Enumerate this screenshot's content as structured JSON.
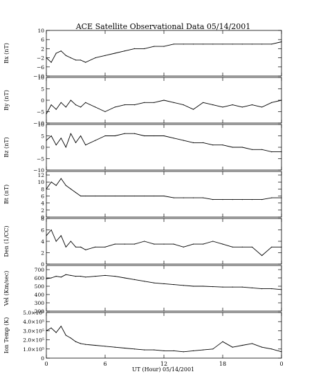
{
  "chart_data": {
    "type": "line",
    "title": "ACE Satellite Observational Data   05/14/2001",
    "xlabel": "UT (Hour)   05/14/2001",
    "x_ticks": [
      "0",
      "6",
      "12",
      "18",
      "0"
    ],
    "x_range": [
      0,
      24
    ],
    "line_color": "#000000",
    "panels": [
      {
        "ylabel": "Bx (nT)",
        "ylim": [
          -10,
          10
        ],
        "yticks": [
          -10,
          -6,
          -2,
          2,
          6,
          10
        ],
        "ytick_labels": [
          "−10",
          "−6",
          "−2",
          "2",
          "6",
          "10"
        ],
        "x": [
          0,
          0.5,
          1,
          1.5,
          2,
          2.5,
          3,
          3.5,
          4,
          5,
          6,
          7,
          8,
          9,
          10,
          11,
          12,
          13,
          14,
          15,
          16,
          17,
          18,
          19,
          20,
          21,
          22,
          23,
          24
        ],
        "values": [
          -2,
          -4,
          0,
          1,
          -1,
          -2,
          -3,
          -3,
          -4,
          -2,
          -1,
          0,
          1,
          2,
          2,
          3,
          3,
          4,
          4,
          4,
          4,
          4,
          4,
          4,
          4,
          4,
          4,
          4,
          5
        ]
      },
      {
        "ylabel": "By (nT)",
        "ylim": [
          -10,
          10
        ],
        "yticks": [
          -10,
          -5,
          0,
          5,
          10
        ],
        "ytick_labels": [
          "−10",
          "−5",
          "0",
          "5",
          "10"
        ],
        "x": [
          0,
          0.5,
          1,
          1.5,
          2,
          2.5,
          3,
          3.5,
          4,
          5,
          6,
          7,
          8,
          9,
          10,
          11,
          12,
          13,
          14,
          15,
          16,
          17,
          18,
          19,
          20,
          21,
          22,
          23,
          24
        ],
        "values": [
          -6,
          -2,
          -4,
          -1,
          -3,
          0,
          -2,
          -3,
          -1,
          -3,
          -5,
          -3,
          -2,
          -2,
          -1,
          -1,
          0,
          -1,
          -2,
          -4,
          -1,
          -2,
          -3,
          -2,
          -3,
          -2,
          -3,
          -1,
          0
        ]
      },
      {
        "ylabel": "Bz (nT)",
        "ylim": [
          -10,
          10
        ],
        "yticks": [
          -10,
          -5,
          0,
          5,
          10
        ],
        "ytick_labels": [
          "−10",
          "−5",
          "0",
          "5",
          "10"
        ],
        "x": [
          0,
          0.5,
          1,
          1.5,
          2,
          2.5,
          3,
          3.5,
          4,
          5,
          6,
          7,
          8,
          9,
          10,
          11,
          12,
          13,
          14,
          15,
          16,
          17,
          18,
          19,
          20,
          21,
          22,
          23,
          24
        ],
        "values": [
          3,
          5,
          1,
          4,
          0,
          6,
          2,
          5,
          1,
          3,
          5,
          5,
          6,
          6,
          5,
          5,
          5,
          4,
          3,
          2,
          2,
          1,
          1,
          0,
          0,
          -1,
          -1,
          -2,
          -2
        ]
      },
      {
        "ylabel": "Bt (nT)",
        "ylim": [
          0,
          13
        ],
        "yticks": [
          0,
          2,
          4,
          6,
          8,
          10,
          12
        ],
        "ytick_labels": [
          "0",
          "2",
          "4",
          "6",
          "8",
          "10",
          "12"
        ],
        "x": [
          0,
          0.5,
          1,
          1.5,
          2,
          2.5,
          3,
          3.5,
          4,
          5,
          6,
          7,
          8,
          9,
          10,
          11,
          12,
          13,
          14,
          15,
          16,
          17,
          18,
          19,
          20,
          21,
          22,
          23,
          24
        ],
        "values": [
          8,
          10,
          9,
          11,
          9,
          8,
          7,
          6,
          6,
          6,
          6,
          6,
          6,
          6,
          6,
          6,
          6,
          5.5,
          5.5,
          5.5,
          5.5,
          5,
          5,
          5,
          5,
          5,
          5,
          5.5,
          5.5
        ]
      },
      {
        "ylabel": "Den (1/CC)",
        "ylim": [
          0,
          8
        ],
        "yticks": [
          0,
          2,
          4,
          6,
          8
        ],
        "ytick_labels": [
          "0",
          "2",
          "4",
          "6",
          "8"
        ],
        "x": [
          0,
          0.5,
          1,
          1.5,
          2,
          2.5,
          3,
          3.5,
          4,
          5,
          6,
          7,
          8,
          9,
          10,
          11,
          12,
          13,
          14,
          15,
          16,
          17,
          18,
          19,
          20,
          21,
          22,
          23,
          24
        ],
        "values": [
          5,
          6,
          4,
          5,
          3,
          4,
          3,
          3,
          2.5,
          3,
          3,
          3.5,
          3.5,
          3.5,
          4,
          3.5,
          3.5,
          3.5,
          3,
          3.5,
          3.5,
          4,
          3.5,
          3,
          3,
          3,
          1.5,
          3,
          3
        ]
      },
      {
        "ylabel": "Vel (Km/sec)",
        "ylim": [
          200,
          750
        ],
        "yticks": [
          200,
          300,
          400,
          500,
          600,
          700
        ],
        "ytick_labels": [
          "200",
          "300",
          "400",
          "500",
          "600",
          "700"
        ],
        "x": [
          0,
          0.5,
          1,
          1.5,
          2,
          2.5,
          3,
          3.5,
          4,
          5,
          6,
          7,
          8,
          9,
          10,
          11,
          12,
          13,
          14,
          15,
          16,
          17,
          18,
          19,
          20,
          21,
          22,
          23,
          24
        ],
        "values": [
          590,
          600,
          620,
          610,
          640,
          630,
          620,
          620,
          610,
          620,
          630,
          620,
          600,
          580,
          560,
          540,
          530,
          520,
          510,
          500,
          500,
          495,
          490,
          490,
          490,
          480,
          470,
          470,
          460
        ]
      },
      {
        "ylabel": "Ion Temp (K)",
        "ylim": [
          0,
          500000
        ],
        "yticks": [
          0,
          100000,
          200000,
          300000,
          400000,
          500000
        ],
        "ytick_labels": [
          "0",
          "1.0×10⁵",
          "2.0×10⁵",
          "3.0×10⁵",
          "4.0×10⁵",
          "5.0×10⁵"
        ],
        "x": [
          0,
          0.5,
          1,
          1.5,
          2,
          2.5,
          3,
          3.5,
          4,
          5,
          6,
          7,
          8,
          9,
          10,
          11,
          12,
          13,
          14,
          15,
          16,
          17,
          18,
          19,
          20,
          21,
          22,
          23,
          24
        ],
        "values": [
          300000,
          330000,
          280000,
          350000,
          250000,
          220000,
          180000,
          160000,
          150000,
          140000,
          130000,
          120000,
          110000,
          100000,
          90000,
          90000,
          80000,
          80000,
          70000,
          80000,
          90000,
          100000,
          180000,
          120000,
          140000,
          160000,
          120000,
          100000,
          70000
        ]
      }
    ]
  }
}
